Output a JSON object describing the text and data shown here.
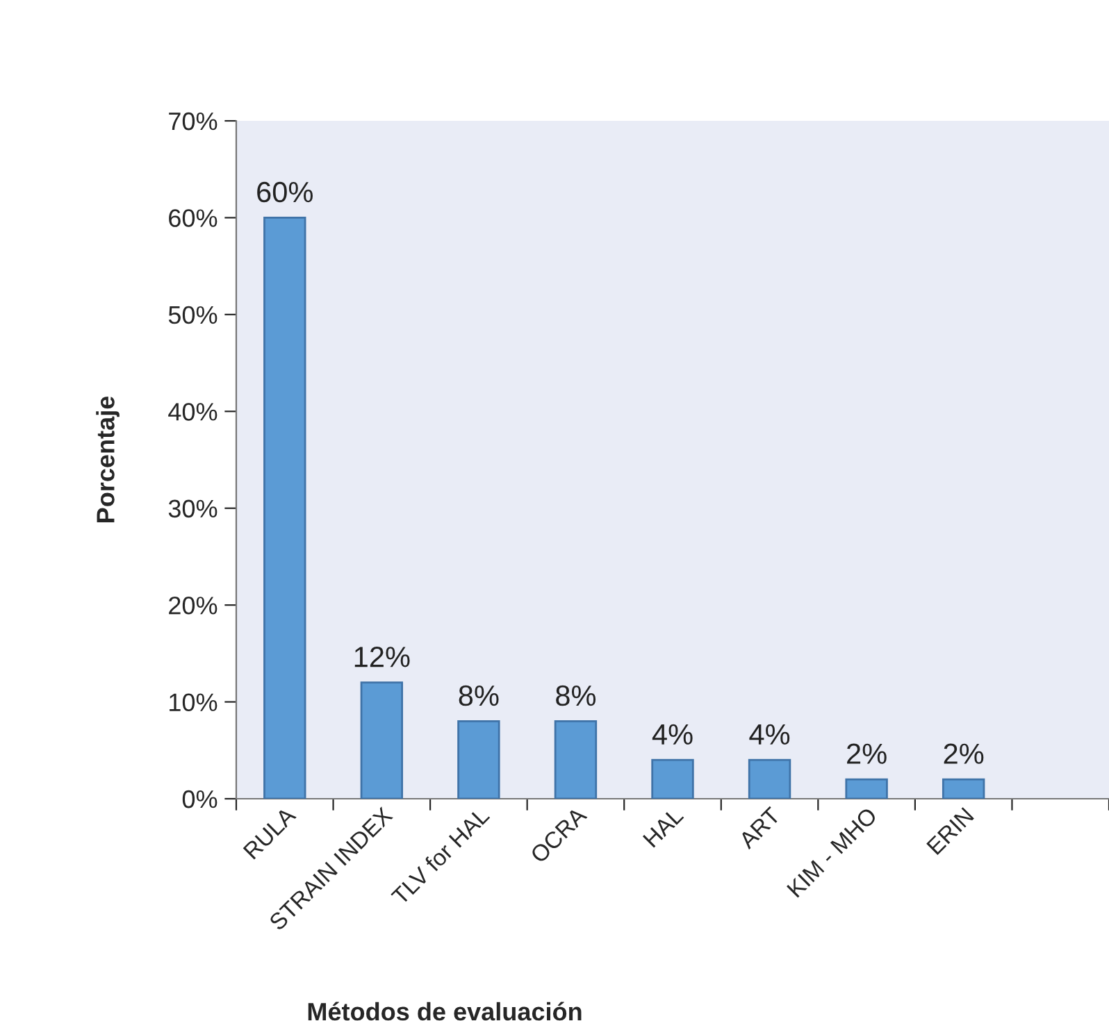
{
  "chart_data": {
    "type": "bar",
    "xlabel": "Métodos de evaluación",
    "ylabel": "Porcentaje",
    "categories": [
      "RULA",
      "STRAIN INDEX",
      "TLV for HAL",
      "OCRA",
      "HAL",
      "ART",
      "KIM - MHO",
      "ERIN",
      null
    ],
    "values": [
      60,
      12,
      8,
      8,
      4,
      4,
      2,
      2,
      null
    ],
    "value_labels": [
      "60%",
      "12%",
      "8%",
      "8%",
      "4%",
      "4%",
      "2%",
      "2%",
      null
    ],
    "color": "#5b9bd5",
    "ylim": [
      0,
      70
    ],
    "yticks": [
      {
        "value": 0,
        "label": "0%"
      },
      {
        "value": 10,
        "label": "10%"
      },
      {
        "value": 20,
        "label": "20%"
      },
      {
        "value": 30,
        "label": "30%"
      },
      {
        "value": 40,
        "label": "40%"
      },
      {
        "value": 50,
        "label": "50%"
      },
      {
        "value": 60,
        "label": "60%"
      },
      {
        "value": 70,
        "label": "70%"
      }
    ],
    "grid": false,
    "legend": false
  }
}
